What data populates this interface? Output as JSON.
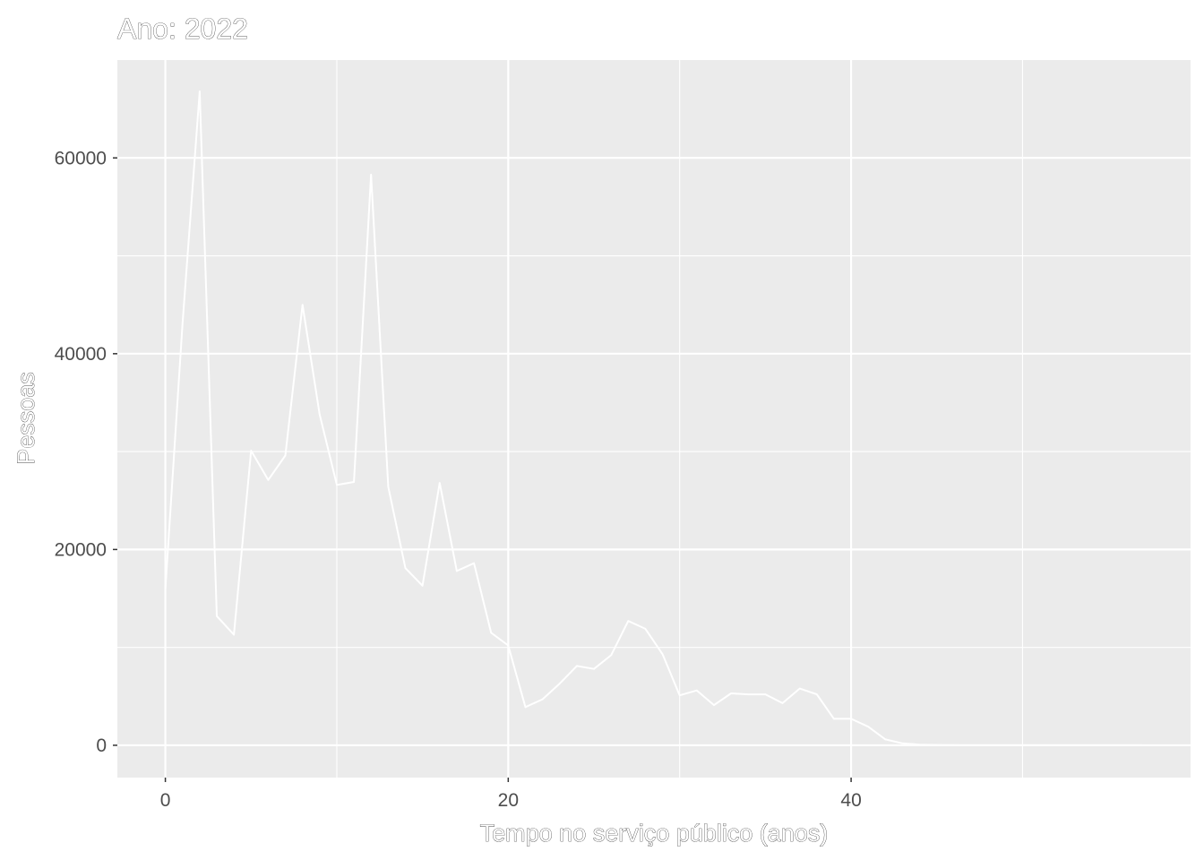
{
  "chart_data": {
    "type": "line",
    "title": "Ano: 2022",
    "xlabel": "Tempo no serviço público (anos)",
    "ylabel": "Pessoas",
    "xlim": [
      -2.8,
      59.8
    ],
    "ylim": [
      -3300,
      70000
    ],
    "x_ticks": [
      0,
      20,
      40
    ],
    "x_tick_labels": [
      "0",
      "20",
      "40"
    ],
    "x_minor_ticks": [
      10,
      30,
      50
    ],
    "y_ticks": [
      0,
      20000,
      40000,
      60000
    ],
    "y_tick_labels": [
      "0",
      "20000",
      "40000",
      "60000"
    ],
    "y_minor_ticks": [
      10000,
      30000,
      50000
    ],
    "grid": true,
    "colors": {
      "panel": "#ebebeb",
      "grid": "#ffffff",
      "line": "#ffffff",
      "tick_text": "#4d4d4d",
      "tick_mark": "#333333"
    },
    "series": [
      {
        "x": [
          0,
          1,
          2,
          3,
          4,
          5,
          6,
          7,
          8,
          9,
          10,
          11,
          12,
          13,
          14,
          15,
          16,
          17,
          18,
          19,
          20,
          21,
          22,
          23,
          24,
          25,
          26,
          27,
          28,
          29,
          30,
          31,
          32,
          33,
          34,
          35,
          36,
          37,
          38,
          39,
          40,
          41,
          42,
          43,
          44,
          45,
          46,
          47,
          48,
          49,
          50,
          51,
          52,
          53,
          54,
          55,
          56,
          57
        ],
        "values": [
          16000,
          43000,
          66800,
          13200,
          11300,
          30100,
          27100,
          29600,
          45000,
          33800,
          26600,
          26900,
          58300,
          26400,
          18100,
          16300,
          26800,
          17800,
          18600,
          11500,
          10200,
          3900,
          4700,
          6300,
          8100,
          7800,
          9200,
          12700,
          11900,
          9300,
          5100,
          5600,
          4100,
          5300,
          5200,
          5200,
          4300,
          5800,
          5200,
          2700,
          2700,
          1900,
          600,
          200,
          70,
          30,
          15,
          8,
          5,
          3,
          2,
          1,
          0,
          0,
          0,
          0,
          0,
          0
        ]
      }
    ]
  }
}
